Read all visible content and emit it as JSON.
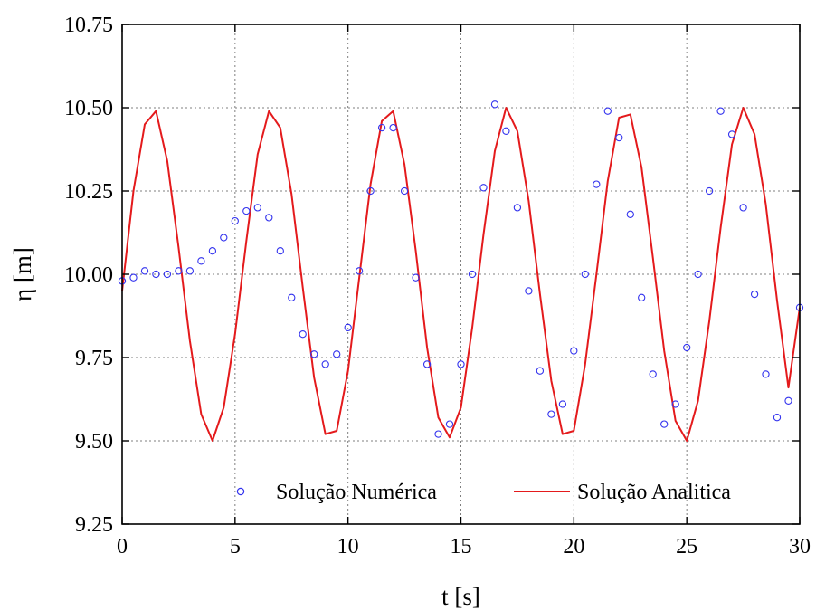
{
  "chart_data": {
    "type": "line",
    "xlabel": "t [s]",
    "ylabel": "η [m]",
    "xlim": [
      0,
      30
    ],
    "ylim": [
      9.25,
      10.75
    ],
    "x_ticks": [
      0,
      5,
      10,
      15,
      20,
      25,
      30
    ],
    "x_tick_labels": [
      "0",
      "5",
      "10",
      "15",
      "20",
      "25",
      "30"
    ],
    "y_ticks": [
      9.25,
      9.5,
      9.75,
      10.0,
      10.25,
      10.5,
      10.75
    ],
    "y_tick_labels": [
      "9.25",
      "9.50",
      "9.75",
      "10.00",
      "10.25",
      "10.50",
      "10.75"
    ],
    "grid": true,
    "legend_position": "bottom",
    "series": [
      {
        "name": "Solução Numérica",
        "style": "scatter-open-circle",
        "color": "#3333ee",
        "x": [
          0,
          0.5,
          1,
          1.5,
          2,
          2.5,
          3,
          3.5,
          4,
          4.5,
          5,
          5.5,
          6,
          6.5,
          7,
          7.5,
          8,
          8.5,
          9,
          9.5,
          10,
          10.5,
          11,
          11.5,
          12,
          12.5,
          13,
          13.5,
          14,
          14.5,
          15,
          15.5,
          16,
          16.5,
          17,
          17.5,
          18,
          18.5,
          19,
          19.5,
          20,
          20.5,
          21,
          21.5,
          22,
          22.5,
          23,
          23.5,
          24,
          24.5,
          25,
          25.5,
          26,
          26.5,
          27,
          27.5,
          28,
          28.5,
          29,
          29.5,
          30
        ],
        "y": [
          9.98,
          9.99,
          10.01,
          10.0,
          10.0,
          10.01,
          10.01,
          10.04,
          10.07,
          10.11,
          10.16,
          10.19,
          10.2,
          10.17,
          10.07,
          9.93,
          9.82,
          9.76,
          9.73,
          9.76,
          9.84,
          10.01,
          10.25,
          10.44,
          10.44,
          10.25,
          9.99,
          9.73,
          9.52,
          9.55,
          9.73,
          10.0,
          10.26,
          10.51,
          10.43,
          10.2,
          9.95,
          9.71,
          9.58,
          9.61,
          9.77,
          10.0,
          10.27,
          10.49,
          10.41,
          10.18,
          9.93,
          9.7,
          9.55,
          9.61,
          9.78,
          10.0,
          10.25,
          10.49,
          10.42,
          10.2,
          9.94,
          9.7,
          9.57,
          9.62,
          9.9
        ]
      },
      {
        "name": "Solução Analitica",
        "style": "line",
        "color": "#e41a1c",
        "x": [
          0,
          0.5,
          1,
          1.5,
          2,
          2.5,
          3,
          3.5,
          4,
          4.5,
          5,
          5.5,
          6,
          6.5,
          7,
          7.5,
          8,
          8.5,
          9,
          9.5,
          10,
          10.5,
          11,
          11.5,
          12,
          12.5,
          13,
          13.5,
          14,
          14.5,
          15,
          15.5,
          16,
          16.5,
          17,
          17.5,
          18,
          18.5,
          19,
          19.5,
          20,
          20.5,
          21,
          21.5,
          22,
          22.5,
          23,
          23.5,
          24,
          24.5,
          25,
          25.5,
          26,
          26.5,
          27,
          27.5,
          28,
          28.5,
          29,
          29.5,
          30
        ],
        "y": [
          9.95,
          10.25,
          10.45,
          10.49,
          10.34,
          10.08,
          9.8,
          9.58,
          9.5,
          9.6,
          9.82,
          10.1,
          10.36,
          10.49,
          10.44,
          10.24,
          9.96,
          9.69,
          9.52,
          9.53,
          9.71,
          9.99,
          10.27,
          10.46,
          10.49,
          10.33,
          10.07,
          9.78,
          9.57,
          9.51,
          9.6,
          9.84,
          10.12,
          10.37,
          10.5,
          10.43,
          10.22,
          9.94,
          9.68,
          9.52,
          9.53,
          9.73,
          10.0,
          10.28,
          10.47,
          10.48,
          10.32,
          10.05,
          9.77,
          9.56,
          9.5,
          9.62,
          9.86,
          10.14,
          10.39,
          10.5,
          10.42,
          10.21,
          9.92,
          9.66,
          9.9
        ]
      }
    ]
  }
}
